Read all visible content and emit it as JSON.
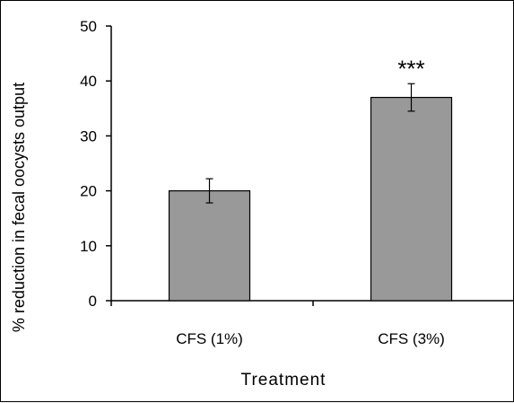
{
  "chart_data": {
    "type": "bar",
    "title": "",
    "xlabel": "Treatment",
    "ylabel": "% reduction in fecal oocysts output",
    "categories": [
      "CFS (1%)",
      "CFS (3%)"
    ],
    "values": [
      20,
      37
    ],
    "errors": [
      2.2,
      2.5
    ],
    "annotations": [
      "",
      "***"
    ],
    "ylim": [
      0,
      50
    ],
    "yticks": [
      0,
      10,
      20,
      30,
      40,
      50
    ],
    "grid": false,
    "bar_color": "#999999",
    "bar_edge_color": "#000000"
  }
}
